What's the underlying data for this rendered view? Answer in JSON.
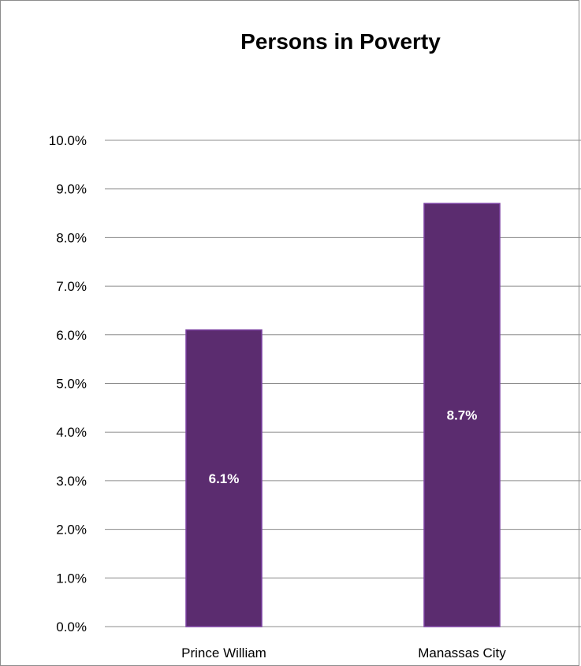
{
  "chart_data": {
    "type": "bar",
    "title": "Persons in Poverty",
    "xlabel": "",
    "ylabel": "",
    "categories": [
      "Prince William",
      "Manassas City"
    ],
    "values": [
      6.1,
      8.7
    ],
    "data_labels": [
      "6.1%",
      "8.7%"
    ],
    "ylim": [
      0,
      10
    ],
    "y_ticks": [
      0,
      1,
      2,
      3,
      4,
      5,
      6,
      7,
      8,
      9,
      10
    ],
    "y_tick_labels": [
      "0.0%",
      "1.0%",
      "2.0%",
      "3.0%",
      "4.0%",
      "5.0%",
      "6.0%",
      "7.0%",
      "8.0%",
      "9.0%",
      "10.0%"
    ],
    "grid": true,
    "legend": "none",
    "colors": {
      "bar_fill": "#5b2c6f",
      "bar_edge": "#7a3fa0",
      "grid": "#8c8c8c",
      "frame": "#8c8c8c"
    }
  }
}
